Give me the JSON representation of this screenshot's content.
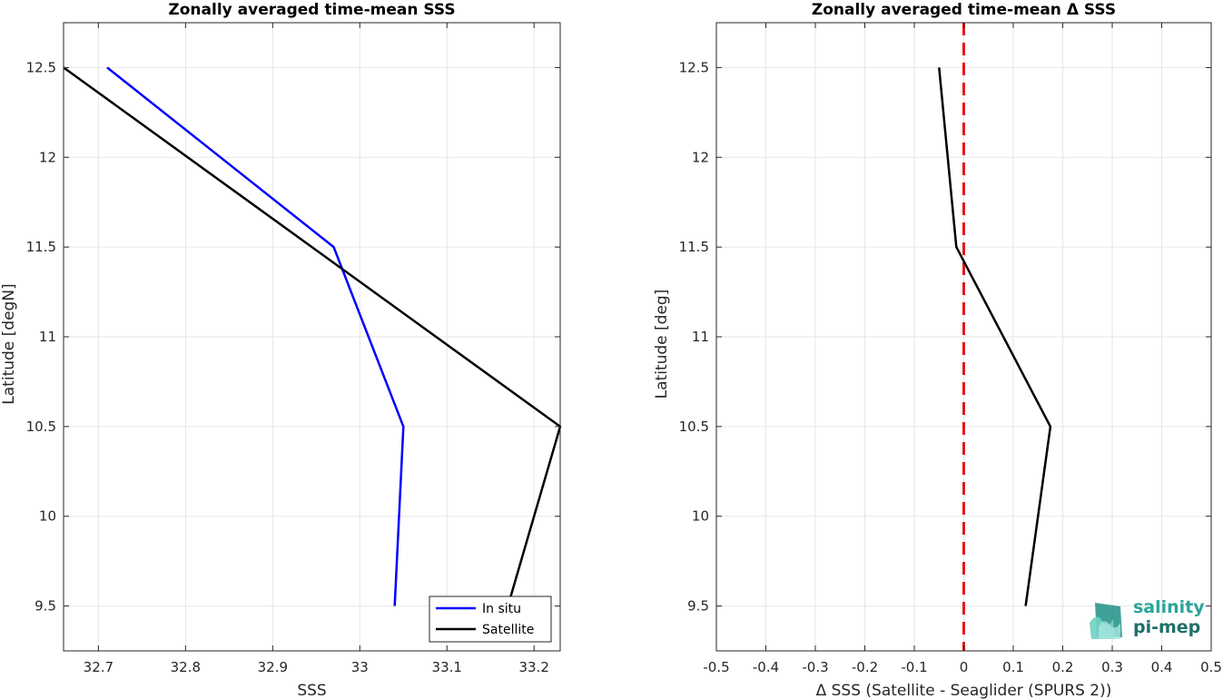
{
  "chart_data": [
    {
      "type": "line",
      "title": "Zonally averaged time-mean SSS",
      "xlabel": "SSS",
      "ylabel": "Latitude [degN]",
      "xlim": [
        32.66,
        33.23
      ],
      "ylim": [
        9.25,
        12.75
      ],
      "xticks": [
        32.7,
        32.8,
        32.9,
        33,
        33.1,
        33.2
      ],
      "xtick_labels": [
        "32.7",
        "32.8",
        "32.9",
        "33",
        "33.1",
        "33.2"
      ],
      "yticks": [
        9.5,
        10,
        10.5,
        11,
        11.5,
        12,
        12.5
      ],
      "ytick_labels": [
        "9.5",
        "10",
        "10.5",
        "11",
        "11.5",
        "12",
        "12.5"
      ],
      "grid": true,
      "legend": "bottom-right",
      "series": [
        {
          "name": "In situ",
          "color": "#0000ff",
          "x": [
            32.71,
            32.97,
            33.05,
            33.04
          ],
          "y": [
            12.5,
            11.5,
            10.5,
            9.5
          ]
        },
        {
          "name": "Satellite",
          "color": "#000000",
          "x": [
            32.66,
            33.23,
            33.17
          ],
          "y": [
            12.5,
            10.5,
            9.5
          ]
        }
      ]
    },
    {
      "type": "line",
      "title": "Zonally averaged time-mean Δ SSS",
      "xlabel": "Δ SSS (Satellite - Seaglider (SPURS 2))",
      "ylabel": "Latitude [deg]",
      "xlim": [
        -0.5,
        0.5
      ],
      "ylim": [
        9.25,
        12.75
      ],
      "xticks": [
        -0.5,
        -0.4,
        -0.3,
        -0.2,
        -0.1,
        0,
        0.1,
        0.2,
        0.3,
        0.4,
        0.5
      ],
      "xtick_labels": [
        "-0.5",
        "-0.4",
        "-0.3",
        "-0.2",
        "-0.1",
        "0",
        "0.1",
        "0.2",
        "0.3",
        "0.4",
        "0.5"
      ],
      "yticks": [
        9.5,
        10,
        10.5,
        11,
        11.5,
        12,
        12.5
      ],
      "ytick_labels": [
        "9.5",
        "10",
        "10.5",
        "11",
        "11.5",
        "12",
        "12.5"
      ],
      "grid": true,
      "series": [
        {
          "color": "#000000",
          "x": [
            -0.05,
            -0.015,
            0.175,
            0.125
          ],
          "y": [
            12.5,
            11.5,
            10.5,
            9.5
          ]
        }
      ],
      "reference_line": {
        "x": 0,
        "color": "#e31a1c",
        "style": "dashed"
      }
    }
  ],
  "logo": {
    "line1": "salinity",
    "line2": "pi-mep"
  }
}
